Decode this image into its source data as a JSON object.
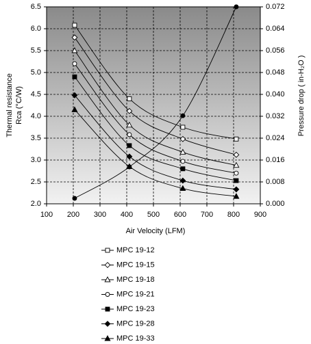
{
  "chart_data": {
    "type": "line",
    "xlabel": "Air Velocity (LFM)",
    "ylabel": [
      "Thermal resistance",
      "Rca (°C/W)"
    ],
    "y2label": "Pressure drop ( in-H₂O )",
    "x": [
      205,
      410,
      610,
      810
    ],
    "xlim": [
      100,
      900
    ],
    "xticks": [
      100,
      200,
      300,
      400,
      500,
      600,
      700,
      800,
      900
    ],
    "ylim": [
      2,
      6.5
    ],
    "yticks": [
      {
        "value": 2,
        "label": "2.0"
      },
      2.5,
      {
        "value": 3,
        "label": "3.0"
      },
      3.5,
      {
        "value": 4,
        "label": "4.0"
      },
      4.5,
      {
        "value": 5,
        "label": "5.0"
      },
      5.5,
      {
        "value": 6,
        "label": "6.0"
      },
      6.5
    ],
    "y2lim": [
      0,
      0.072
    ],
    "y2ticks": [
      {
        "value": 0,
        "label": "0.000"
      },
      0.008,
      0.016,
      0.024,
      0.032,
      {
        "value": 0.04,
        "label": "0.040"
      },
      0.048,
      0.056,
      0.064,
      0.072
    ],
    "grid": true,
    "series": [
      {
        "name": "MPC 19-12",
        "marker": "square-open",
        "color": "#000000",
        "values": [
          6.08,
          4.4,
          3.75,
          3.48
        ]
      },
      {
        "name": "MPC 19-15",
        "marker": "diamond-open",
        "color": "#000000",
        "values": [
          5.8,
          4.12,
          3.48,
          3.12
        ]
      },
      {
        "name": "MPC 19-18",
        "marker": "triangle-open",
        "color": "#000000",
        "values": [
          5.5,
          3.8,
          3.18,
          2.88
        ]
      },
      {
        "name": "MPC 19-21",
        "marker": "circle-open",
        "color": "#000000",
        "values": [
          5.2,
          3.58,
          2.97,
          2.7
        ]
      },
      {
        "name": "MPC 19-23",
        "marker": "square",
        "color": "#000000",
        "values": [
          4.9,
          3.33,
          2.8,
          2.53
        ]
      },
      {
        "name": "MPC 19-28",
        "marker": "diamond",
        "color": "#000000",
        "values": [
          4.48,
          3.08,
          2.53,
          2.33
        ]
      },
      {
        "name": "MPC 19-33",
        "marker": "triangle",
        "color": "#000000",
        "values": [
          4.15,
          2.85,
          2.35,
          2.17
        ]
      },
      {
        "marker": "circle",
        "color": "#000000",
        "axis": "y2",
        "values": [
          0.002,
          0.0135,
          0.0322,
          0.072
        ]
      }
    ]
  }
}
